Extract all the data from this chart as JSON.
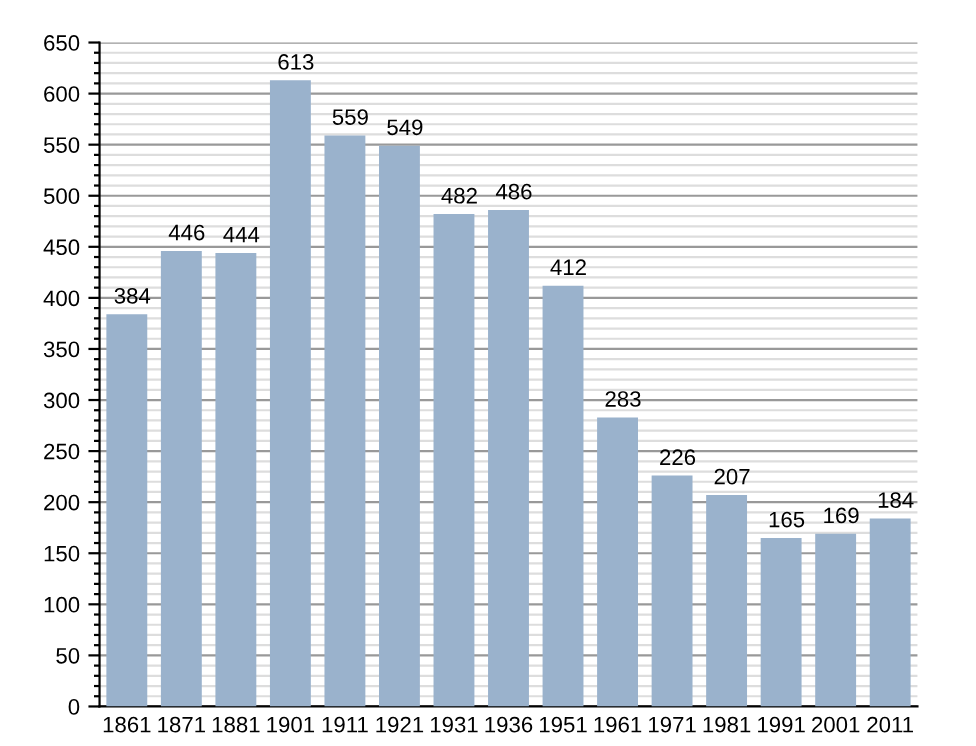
{
  "chart_data": {
    "type": "bar",
    "categories": [
      "1861",
      "1871",
      "1881",
      "1901",
      "1911",
      "1921",
      "1931",
      "1936",
      "1951",
      "1961",
      "1971",
      "1981",
      "1991",
      "2001",
      "2011"
    ],
    "values": [
      384,
      446,
      444,
      613,
      559,
      549,
      482,
      486,
      412,
      283,
      226,
      207,
      165,
      169,
      184
    ],
    "color": "#9ab2cc",
    "data_labels": true,
    "grid": "y",
    "ylim": [
      0,
      650
    ],
    "yticks": [
      0,
      {
        "value": 10,
        "label": null
      },
      {
        "value": 20,
        "label": null
      },
      {
        "value": 30,
        "label": null
      },
      {
        "value": 40,
        "label": null
      },
      50,
      {
        "value": 60,
        "label": null
      },
      {
        "value": 70,
        "label": null
      },
      {
        "value": 80,
        "label": null
      },
      {
        "value": 90,
        "label": null
      },
      100,
      {
        "value": 110,
        "label": null
      },
      {
        "value": 120,
        "label": null
      },
      {
        "value": 130,
        "label": null
      },
      {
        "value": 140,
        "label": null
      },
      150,
      {
        "value": 160,
        "label": null
      },
      {
        "value": 170,
        "label": null
      },
      {
        "value": 180,
        "label": null
      },
      {
        "value": 190,
        "label": null
      },
      200,
      {
        "value": 210,
        "label": null
      },
      {
        "value": 220,
        "label": null
      },
      {
        "value": 230,
        "label": null
      },
      {
        "value": 240,
        "label": null
      },
      250,
      {
        "value": 260,
        "label": null
      },
      {
        "value": 270,
        "label": null
      },
      {
        "value": 280,
        "label": null
      },
      {
        "value": 290,
        "label": null
      },
      300,
      {
        "value": 310,
        "label": null
      },
      {
        "value": 320,
        "label": null
      },
      {
        "value": 330,
        "label": null
      },
      {
        "value": 340,
        "label": null
      },
      350,
      {
        "value": 360,
        "label": null
      },
      {
        "value": 370,
        "label": null
      },
      {
        "value": 380,
        "label": null
      },
      {
        "value": 390,
        "label": null
      },
      400,
      {
        "value": 410,
        "label": null
      },
      {
        "value": 420,
        "label": null
      },
      {
        "value": 430,
        "label": null
      },
      {
        "value": 440,
        "label": null
      },
      450,
      {
        "value": 460,
        "label": null
      },
      {
        "value": 470,
        "label": null
      },
      {
        "value": 480,
        "label": null
      },
      {
        "value": 490,
        "label": null
      },
      500,
      {
        "value": 510,
        "label": null
      },
      {
        "value": 520,
        "label": null
      },
      {
        "value": 530,
        "label": null
      },
      {
        "value": 540,
        "label": null
      },
      550,
      {
        "value": 560,
        "label": null
      },
      {
        "value": 570,
        "label": null
      },
      {
        "value": 580,
        "label": null
      },
      {
        "value": 590,
        "label": null
      },
      600,
      {
        "value": 610,
        "label": null
      },
      {
        "value": 620,
        "label": null
      },
      {
        "value": 630,
        "label": null
      },
      {
        "value": 640,
        "label": null
      },
      650
    ]
  }
}
